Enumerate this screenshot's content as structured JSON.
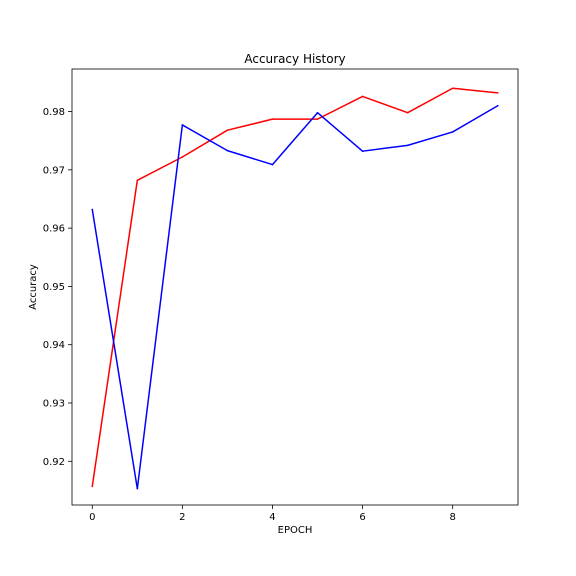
{
  "chart_data": {
    "type": "line",
    "title": "Accuracy History",
    "xlabel": "EPOCH",
    "ylabel": "Accuracy",
    "x": [
      0,
      1,
      2,
      3,
      4,
      5,
      6,
      7,
      8,
      9
    ],
    "xlim": [
      -0.45,
      9.45
    ],
    "ylim": [
      0.9125,
      0.9873
    ],
    "xticks": [
      0,
      2,
      4,
      6,
      8
    ],
    "yticks": [
      0.92,
      0.93,
      0.94,
      0.95,
      0.96,
      0.97,
      0.98
    ],
    "xtick_labels": [
      "0",
      "2",
      "4",
      "6",
      "8"
    ],
    "ytick_labels": [
      "0.92",
      "0.93",
      "0.94",
      "0.95",
      "0.96",
      "0.97",
      "0.98"
    ],
    "grid": false,
    "legend": "none",
    "series": [
      {
        "color": "#ff0000",
        "values": [
          0.9157,
          0.9682,
          0.9722,
          0.9768,
          0.9787,
          0.9787,
          0.9826,
          0.9798,
          0.984,
          0.9832
        ]
      },
      {
        "color": "#0000ff",
        "values": [
          0.9632,
          0.9153,
          0.9777,
          0.9733,
          0.9709,
          0.9798,
          0.9732,
          0.9742,
          0.9765,
          0.981
        ]
      }
    ]
  }
}
